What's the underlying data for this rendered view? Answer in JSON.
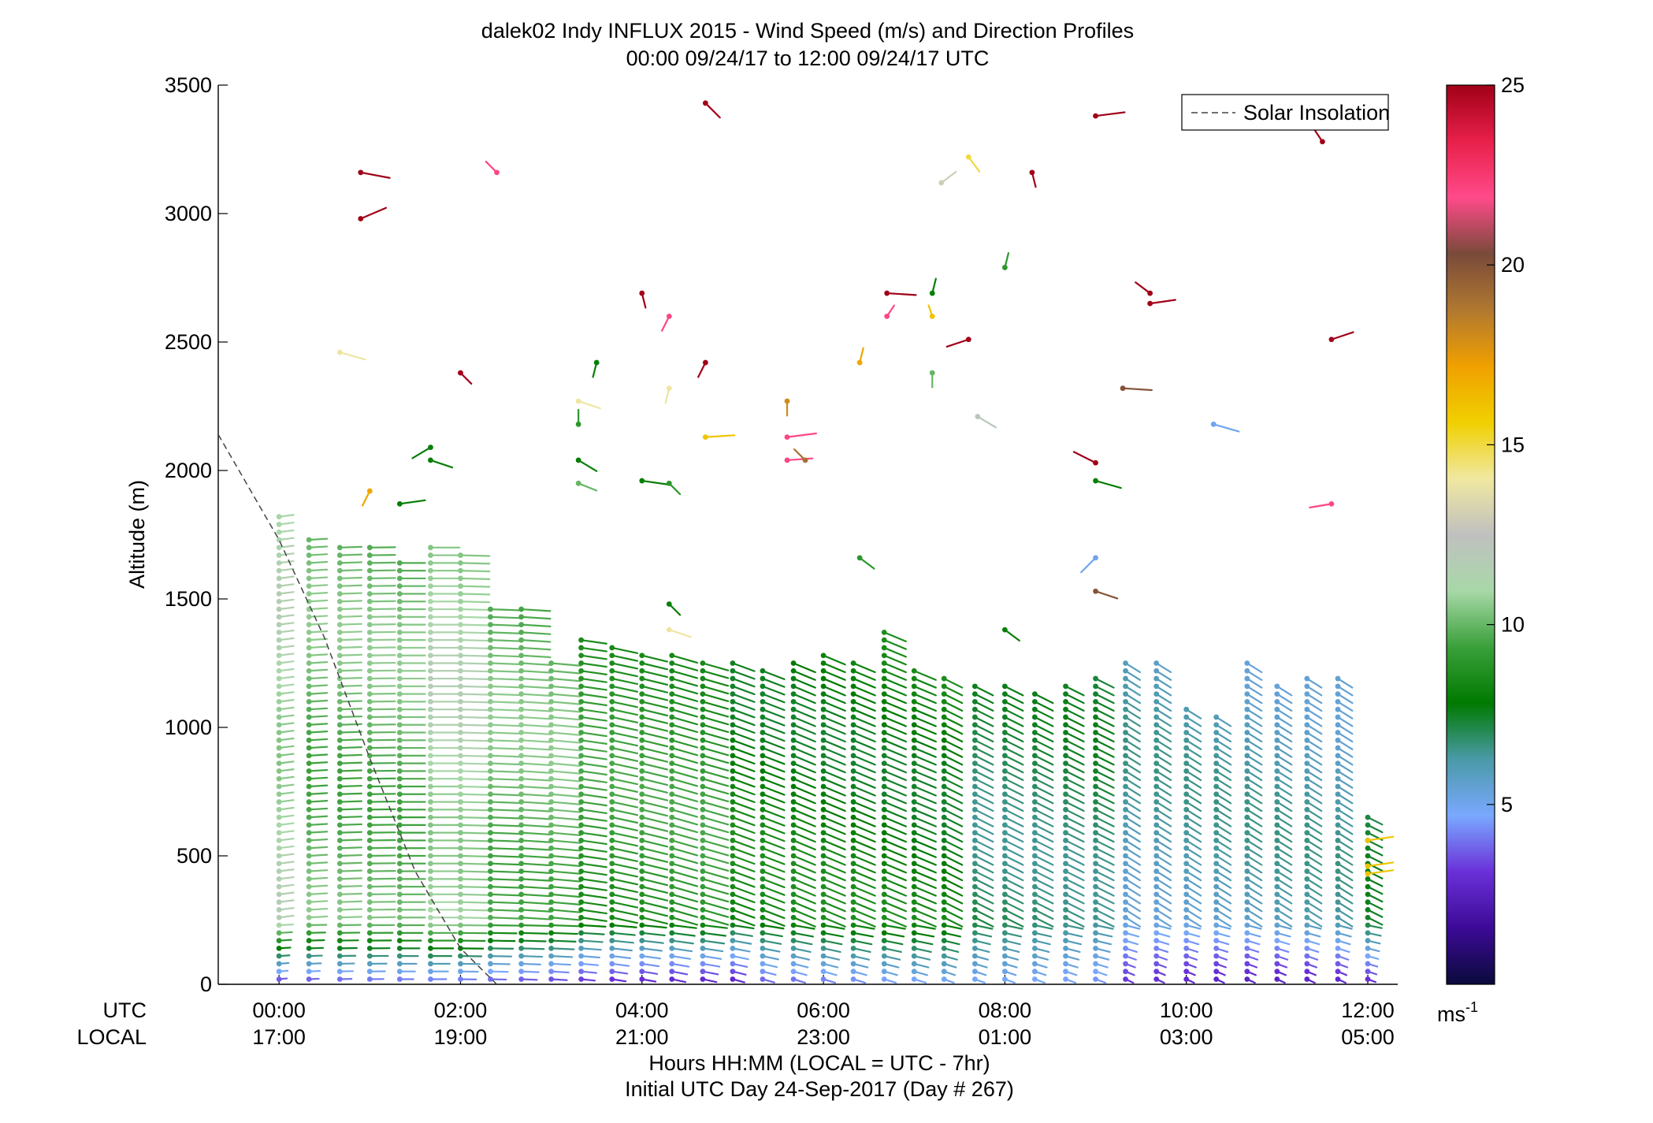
{
  "chart_data": {
    "type": "scatter",
    "title": "dalek02 Indy INFLUX 2015 - Wind Speed (m/s) and Direction Profiles",
    "subtitle": "00:00 09/24/17 to 12:00 09/24/17  UTC",
    "ylabel": "Altitude (m)",
    "xlabel": "Hours HH:MM  (LOCAL = UTC - 7hr)",
    "xlabel2": "Initial UTC Day 24-Sep-2017 (Day # 267)",
    "xlim": [
      -0.67,
      12.33
    ],
    "ylim": [
      0,
      3500
    ],
    "y_ticks": [
      0,
      500,
      1000,
      1500,
      2000,
      2500,
      3000,
      3500
    ],
    "x_ticks": [
      0,
      2,
      4,
      6,
      8,
      10,
      12
    ],
    "utc_row_label": "UTC",
    "local_row_label": "LOCAL",
    "utc_tick_labels": [
      "00:00",
      "02:00",
      "04:00",
      "06:00",
      "08:00",
      "10:00",
      "12:00"
    ],
    "local_tick_labels": [
      "17:00",
      "19:00",
      "21:00",
      "23:00",
      "01:00",
      "03:00",
      "05:00"
    ],
    "legend": {
      "label": "Solar Insolation",
      "placement": "top-right"
    },
    "colorbar": {
      "range": [
        0,
        25
      ],
      "ticks": [
        5,
        10,
        15,
        20,
        25
      ],
      "tick_labels": [
        "5",
        "10",
        "15",
        "20",
        "25"
      ],
      "unit_label": "ms",
      "unit_exponent": "-1",
      "colormap": [
        "#0a0a3c",
        "#3c0a96",
        "#6a30d8",
        "#7aa8ff",
        "#4a9aa8",
        "#007a00",
        "#3aa03a",
        "#a8d8a8",
        "#c0c0c0",
        "#f0e8a0",
        "#f0d000",
        "#f0a000",
        "#b07830",
        "#7a4a3a",
        "#ff4a8a",
        "#e8204a",
        "#a00018"
      ]
    },
    "solar_insolation": [
      {
        "x": -0.67,
        "y": 2140
      },
      {
        "x": 0.0,
        "y": 1730
      },
      {
        "x": 0.5,
        "y": 1350
      },
      {
        "x": 1.0,
        "y": 880
      },
      {
        "x": 1.5,
        "y": 440
      },
      {
        "x": 2.0,
        "y": 140
      },
      {
        "x": 2.4,
        "y": 0
      }
    ],
    "profiles": [
      {
        "t": 0.0,
        "top": 1830,
        "u": 4,
        "v": 0.5,
        "s0": 11,
        "sb": 3
      },
      {
        "t": 0.33,
        "top": 1740,
        "u": 5,
        "v": 0.3,
        "s0": 10,
        "sb": 3
      },
      {
        "t": 0.67,
        "top": 1720,
        "u": 6,
        "v": 0.2,
        "s0": 10,
        "sb": 3
      },
      {
        "t": 1.0,
        "top": 1710,
        "u": 7,
        "v": 0.1,
        "s0": 10,
        "sb": 3
      },
      {
        "t": 1.33,
        "top": 1660,
        "u": 7,
        "v": 0.0,
        "s0": 10,
        "sb": 3
      },
      {
        "t": 1.67,
        "top": 1700,
        "u": 8,
        "v": 0.0,
        "s0": 11,
        "sb": 3
      },
      {
        "t": 2.0,
        "top": 1690,
        "u": 8,
        "v": -0.2,
        "s0": 11,
        "sb": 3
      },
      {
        "t": 2.33,
        "top": 1480,
        "u": 8,
        "v": -0.3,
        "s0": 10,
        "sb": 3
      },
      {
        "t": 2.67,
        "top": 1480,
        "u": 8,
        "v": -0.5,
        "s0": 10,
        "sb": 3
      },
      {
        "t": 3.0,
        "top": 1250,
        "u": 8,
        "v": -0.7,
        "s0": 10,
        "sb": 3
      },
      {
        "t": 3.33,
        "top": 1340,
        "u": 7,
        "v": -1.0,
        "s0": 9,
        "sb": 3
      },
      {
        "t": 3.67,
        "top": 1310,
        "u": 7,
        "v": -1.5,
        "s0": 9,
        "sb": 3
      },
      {
        "t": 4.0,
        "top": 1300,
        "u": 7,
        "v": -1.7,
        "s0": 9,
        "sb": 3
      },
      {
        "t": 4.33,
        "top": 1290,
        "u": 7,
        "v": -2.0,
        "s0": 9,
        "sb": 3
      },
      {
        "t": 4.67,
        "top": 1260,
        "u": 7,
        "v": -2.0,
        "s0": 9,
        "sb": 3
      },
      {
        "t": 5.0,
        "top": 1250,
        "u": 6,
        "v": -2.2,
        "s0": 8,
        "sb": 3
      },
      {
        "t": 5.33,
        "top": 1230,
        "u": 6,
        "v": -2.3,
        "s0": 8,
        "sb": 4
      },
      {
        "t": 5.67,
        "top": 1250,
        "u": 6,
        "v": -2.5,
        "s0": 8,
        "sb": 4
      },
      {
        "t": 6.0,
        "top": 1290,
        "u": 6,
        "v": -2.5,
        "s0": 8,
        "sb": 4
      },
      {
        "t": 6.33,
        "top": 1260,
        "u": 6,
        "v": -2.5,
        "s0": 8,
        "sb": 4
      },
      {
        "t": 6.67,
        "top": 1370,
        "u": 6,
        "v": -2.5,
        "s0": 8,
        "sb": 4
      },
      {
        "t": 7.0,
        "top": 1240,
        "u": 6,
        "v": -2.5,
        "s0": 8,
        "sb": 4
      },
      {
        "t": 7.33,
        "top": 1200,
        "u": 5,
        "v": -2.5,
        "s0": 8,
        "sb": 4
      },
      {
        "t": 7.67,
        "top": 1170,
        "u": 5,
        "v": -2.5,
        "s0": 7,
        "sb": 4
      },
      {
        "t": 8.0,
        "top": 1170,
        "u": 5,
        "v": -2.5,
        "s0": 7,
        "sb": 4
      },
      {
        "t": 8.33,
        "top": 1130,
        "u": 5,
        "v": -2.5,
        "s0": 7,
        "sb": 4
      },
      {
        "t": 8.67,
        "top": 1170,
        "u": 5,
        "v": -2.5,
        "s0": 7,
        "sb": 4
      },
      {
        "t": 9.0,
        "top": 1210,
        "u": 5,
        "v": -2.5,
        "s0": 7,
        "sb": 4
      },
      {
        "t": 9.33,
        "top": 1250,
        "u": 4,
        "v": -2.5,
        "s0": 6,
        "sb": 3
      },
      {
        "t": 9.67,
        "top": 1250,
        "u": 4,
        "v": -2.5,
        "s0": 6,
        "sb": 3
      },
      {
        "t": 10.0,
        "top": 1090,
        "u": 4,
        "v": -2.5,
        "s0": 6,
        "sb": 3
      },
      {
        "t": 10.33,
        "top": 1050,
        "u": 4,
        "v": -2.5,
        "s0": 6,
        "sb": 3
      },
      {
        "t": 10.67,
        "top": 1250,
        "u": 4,
        "v": -2.5,
        "s0": 6,
        "sb": 3
      },
      {
        "t": 11.0,
        "top": 1170,
        "u": 4,
        "v": -2.5,
        "s0": 6,
        "sb": 3
      },
      {
        "t": 11.33,
        "top": 1210,
        "u": 4,
        "v": -2.5,
        "s0": 6,
        "sb": 3
      },
      {
        "t": 11.67,
        "top": 1210,
        "u": 4,
        "v": -2.5,
        "s0": 6,
        "sb": 3
      },
      {
        "t": 12.0,
        "top": 650,
        "u": 4,
        "v": -2.0,
        "s0": 7,
        "sb": 3
      }
    ],
    "isolated_points": [
      {
        "t": 0.9,
        "z": 3160,
        "u": 8,
        "v": -1.5,
        "s": 25
      },
      {
        "t": 0.9,
        "z": 2980,
        "u": 7,
        "v": 3,
        "s": 25
      },
      {
        "t": 2.4,
        "z": 3160,
        "u": -3,
        "v": 3,
        "s": 22
      },
      {
        "t": 4.7,
        "z": 3430,
        "u": 4,
        "v": -4,
        "s": 25
      },
      {
        "t": 9.0,
        "z": 3380,
        "u": 8,
        "v": 1,
        "s": 25
      },
      {
        "t": 11.5,
        "z": 3280,
        "u": -2,
        "v": 3,
        "s": 25
      },
      {
        "t": 7.6,
        "z": 3220,
        "u": 3,
        "v": -4,
        "s": 15
      },
      {
        "t": 7.3,
        "z": 3120,
        "u": 4,
        "v": 3,
        "s": 13
      },
      {
        "t": 8.3,
        "z": 3160,
        "u": 1,
        "v": -4,
        "s": 25
      },
      {
        "t": 8.0,
        "z": 2790,
        "u": 1,
        "v": 4,
        "s": 9
      },
      {
        "t": 6.7,
        "z": 2690,
        "u": 8,
        "v": -0.5,
        "s": 25
      },
      {
        "t": 7.2,
        "z": 2690,
        "u": 1,
        "v": 4,
        "s": 8
      },
      {
        "t": 6.7,
        "z": 2600,
        "u": 2,
        "v": 3,
        "s": 22
      },
      {
        "t": 7.2,
        "z": 2600,
        "u": -1,
        "v": 3,
        "s": 16
      },
      {
        "t": 7.6,
        "z": 2510,
        "u": -6,
        "v": -2,
        "s": 25
      },
      {
        "t": 6.4,
        "z": 2420,
        "u": 1,
        "v": 4,
        "s": 17
      },
      {
        "t": 7.2,
        "z": 2380,
        "u": 0,
        "v": -4,
        "s": 10
      },
      {
        "t": 7.7,
        "z": 2210,
        "u": 5,
        "v": -3,
        "s": 12
      },
      {
        "t": 5.6,
        "z": 2270,
        "u": 0,
        "v": -4,
        "s": 18
      },
      {
        "t": 5.6,
        "z": 2130,
        "u": 8,
        "v": 1,
        "s": 22
      },
      {
        "t": 5.6,
        "z": 2040,
        "u": 7,
        "v": 0.5,
        "s": 22
      },
      {
        "t": 5.8,
        "z": 2040,
        "u": -3,
        "v": 3,
        "s": 19
      },
      {
        "t": 4.0,
        "z": 2690,
        "u": 1,
        "v": -4,
        "s": 25
      },
      {
        "t": 4.3,
        "z": 2600,
        "u": -2,
        "v": -4,
        "s": 22
      },
      {
        "t": 4.3,
        "z": 2320,
        "u": -1,
        "v": -4,
        "s": 14
      },
      {
        "t": 4.7,
        "z": 2420,
        "u": -2,
        "v": -4,
        "s": 25
      },
      {
        "t": 4.7,
        "z": 2130,
        "u": 8,
        "v": 0.5,
        "s": 16
      },
      {
        "t": 3.5,
        "z": 2420,
        "u": -1,
        "v": -4,
        "s": 8
      },
      {
        "t": 3.3,
        "z": 2270,
        "u": 6,
        "v": -2,
        "s": 14
      },
      {
        "t": 3.3,
        "z": 2180,
        "u": 0,
        "v": 4,
        "s": 9
      },
      {
        "t": 3.3,
        "z": 2040,
        "u": 5,
        "v": -3,
        "s": 8
      },
      {
        "t": 3.3,
        "z": 1950,
        "u": 5,
        "v": -2,
        "s": 10
      },
      {
        "t": 4.0,
        "z": 1960,
        "u": 7,
        "v": -1,
        "s": 8
      },
      {
        "t": 4.3,
        "z": 1950,
        "u": 3,
        "v": -3,
        "s": 9
      },
      {
        "t": 4.3,
        "z": 1480,
        "u": 3,
        "v": -3,
        "s": 8
      },
      {
        "t": 4.3,
        "z": 1380,
        "u": 6,
        "v": -2,
        "s": 14
      },
      {
        "t": 0.67,
        "z": 2460,
        "u": 7,
        "v": -2,
        "s": 14
      },
      {
        "t": 2.0,
        "z": 2380,
        "u": 3,
        "v": -3,
        "s": 25
      },
      {
        "t": 1.67,
        "z": 2090,
        "u": -5,
        "v": -3,
        "s": 8
      },
      {
        "t": 1.67,
        "z": 2040,
        "u": 6,
        "v": -2,
        "s": 8
      },
      {
        "t": 1.0,
        "z": 1920,
        "u": -2,
        "v": -4,
        "s": 17
      },
      {
        "t": 1.33,
        "z": 1870,
        "u": 7,
        "v": 1,
        "s": 8
      },
      {
        "t": 9.0,
        "z": 2030,
        "u": -6,
        "v": 3,
        "s": 25
      },
      {
        "t": 9.0,
        "z": 1960,
        "u": 7,
        "v": -2,
        "s": 8
      },
      {
        "t": 9.3,
        "z": 2320,
        "u": 8,
        "v": -0.5,
        "s": 20
      },
      {
        "t": 9.6,
        "z": 2690,
        "u": -4,
        "v": 3,
        "s": 25
      },
      {
        "t": 9.6,
        "z": 2650,
        "u": 7,
        "v": 1,
        "s": 25
      },
      {
        "t": 10.3,
        "z": 2180,
        "u": 7,
        "v": -2,
        "s": 5
      },
      {
        "t": 11.6,
        "z": 2510,
        "u": 6,
        "v": 2,
        "s": 25
      },
      {
        "t": 11.6,
        "z": 1870,
        "u": -6,
        "v": -1,
        "s": 22
      },
      {
        "t": 9.0,
        "z": 1660,
        "u": -4,
        "v": -4,
        "s": 5
      },
      {
        "t": 9.0,
        "z": 1530,
        "u": 6,
        "v": -2,
        "s": 20
      },
      {
        "t": 6.4,
        "z": 1660,
        "u": 4,
        "v": -3,
        "s": 9
      },
      {
        "t": 8.0,
        "z": 1380,
        "u": 4,
        "v": -3,
        "s": 8
      },
      {
        "t": 12.0,
        "z": 560,
        "u": 7,
        "v": 1,
        "s": 16
      },
      {
        "t": 12.0,
        "z": 460,
        "u": 7,
        "v": 1,
        "s": 16
      },
      {
        "t": 12.0,
        "z": 430,
        "u": 7,
        "v": 1,
        "s": 16
      }
    ]
  }
}
